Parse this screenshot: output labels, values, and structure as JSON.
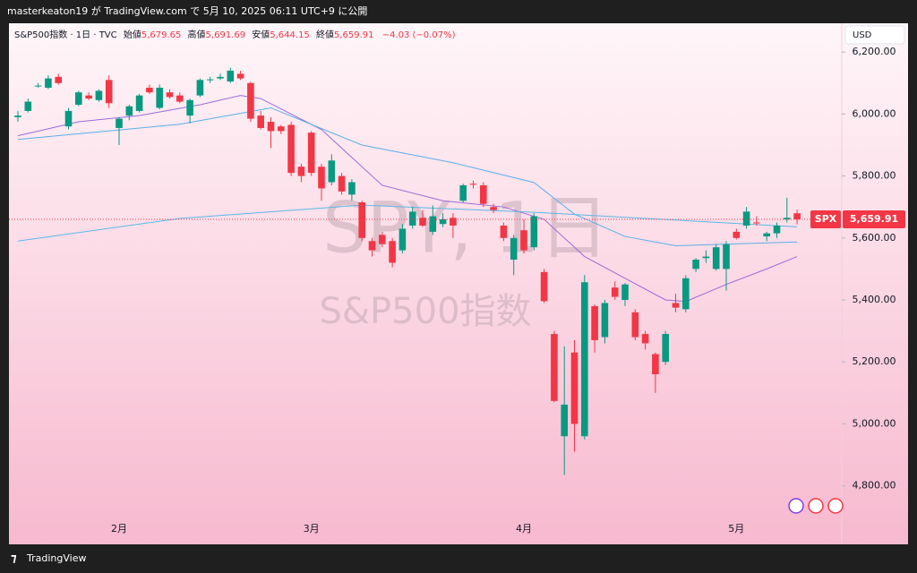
{
  "header": {
    "publish_line": "masterkeaton19 が TradingView.com で 5月 10, 2025 06:11 UTC+9 に公開",
    "legend": {
      "symbol": "S&P500指数 · 1日 · TVC",
      "open_caption": "始値",
      "open": "5,679.65",
      "high_caption": "高値",
      "high": "5,691.69",
      "low_caption": "安値",
      "low": "5,644.15",
      "close_caption": "終値",
      "close": "5,659.91",
      "change": "−4.03 (−0.07%)"
    },
    "currency": "USD"
  },
  "watermark": {
    "ticker": "SPY, 1日",
    "name": "S&P500指数"
  },
  "footer": {
    "brand": "TradingView"
  },
  "chart_data": {
    "type": "candlestick",
    "up_color": "#089981",
    "down_color": "#f23645",
    "categories": [
      null,
      null,
      null,
      null,
      null,
      null,
      null,
      null,
      null,
      null,
      "2月",
      null,
      null,
      null,
      null,
      null,
      null,
      null,
      null,
      null,
      null,
      null,
      null,
      null,
      null,
      null,
      null,
      null,
      null,
      "3月",
      null,
      null,
      null,
      null,
      null,
      null,
      null,
      null,
      null,
      null,
      null,
      null,
      null,
      null,
      null,
      null,
      null,
      null,
      null,
      null,
      "4月",
      null,
      null,
      null,
      null,
      null,
      null,
      null,
      null,
      null,
      null,
      null,
      null,
      null,
      null,
      null,
      null,
      null,
      null,
      null,
      null,
      "5月",
      null,
      null,
      null,
      null,
      null,
      null
    ],
    "open": [
      5990,
      6010,
      6090,
      6085,
      6120,
      5960,
      6030,
      6060,
      6045,
      6110,
      5955,
      5995,
      6010,
      6085,
      6020,
      6070,
      6060,
      5995,
      6060,
      6110,
      6115,
      6105,
      6130,
      6100,
      5995,
      5975,
      5960,
      5965,
      5830,
      5940,
      5830,
      5780,
      5800,
      5740,
      5715,
      5590,
      5610,
      5590,
      5560,
      5640,
      5665,
      5620,
      5645,
      5665,
      5720,
      5775,
      5770,
      5700,
      5640,
      5530,
      5625,
      5570,
      5490,
      5290,
      4960,
      5230,
      4960,
      5380,
      5280,
      5440,
      5400,
      5360,
      5290,
      5225,
      5200,
      5390,
      5370,
      5500,
      5535,
      5500,
      5500,
      5620,
      5640,
      5650,
      5605,
      5615,
      5660,
      5679.65
    ],
    "high": [
      6010,
      6050,
      6100,
      6125,
      6130,
      6020,
      6075,
      6070,
      6080,
      6125,
      5990,
      6030,
      6065,
      6095,
      6095,
      6080,
      6070,
      6050,
      6115,
      6120,
      6130,
      6150,
      6140,
      6105,
      6010,
      5990,
      5965,
      5975,
      5840,
      5945,
      5840,
      5870,
      5810,
      5790,
      5720,
      5600,
      5620,
      5600,
      5645,
      5700,
      5690,
      5705,
      5680,
      5680,
      5775,
      5785,
      5780,
      5710,
      5650,
      5610,
      5660,
      5680,
      5500,
      5300,
      5250,
      5270,
      5480,
      5385,
      5400,
      5460,
      5455,
      5370,
      5300,
      5230,
      5300,
      5420,
      5480,
      5535,
      5560,
      5580,
      5590,
      5630,
      5700,
      5670,
      5620,
      5650,
      5730,
      5691.69
    ],
    "low": [
      5975,
      6005,
      6085,
      6080,
      6095,
      5950,
      6025,
      6045,
      6040,
      6020,
      5900,
      5980,
      6005,
      6065,
      6015,
      6050,
      6035,
      5970,
      6055,
      6100,
      6110,
      6100,
      6110,
      5975,
      5950,
      5890,
      5935,
      5800,
      5780,
      5800,
      5720,
      5770,
      5740,
      5720,
      5590,
      5540,
      5570,
      5505,
      5550,
      5630,
      5635,
      5610,
      5635,
      5600,
      5715,
      5760,
      5700,
      5680,
      5590,
      5480,
      5550,
      5560,
      5390,
      5070,
      4835,
      4910,
      4950,
      5230,
      5260,
      5400,
      5380,
      5270,
      5240,
      5100,
      5190,
      5360,
      5360,
      5490,
      5520,
      5495,
      5430,
      5595,
      5630,
      5640,
      5590,
      5600,
      5650,
      5644.15
    ],
    "close": [
      5995,
      6040,
      6092,
      6115,
      6100,
      6010,
      6070,
      6050,
      6075,
      6035,
      5985,
      6025,
      6060,
      6070,
      6085,
      6055,
      6040,
      6045,
      6110,
      6112,
      6120,
      6140,
      6115,
      5985,
      5955,
      5945,
      5945,
      5810,
      5800,
      5810,
      5760,
      5850,
      5750,
      5780,
      5600,
      5560,
      5580,
      5520,
      5630,
      5685,
      5640,
      5670,
      5660,
      5640,
      5770,
      5772,
      5710,
      5690,
      5600,
      5600,
      5560,
      5670,
      5396,
      5074,
      5062,
      5000,
      5457,
      5270,
      5390,
      5410,
      5450,
      5280,
      5260,
      5160,
      5290,
      5375,
      5470,
      5530,
      5540,
      5570,
      5580,
      5600,
      5685,
      5648,
      5615,
      5640,
      5665,
      5659.91
    ],
    "overlays": [
      {
        "color": "#9c6ad6",
        "x": [
          0,
          6,
          12,
          18,
          22,
          24,
          30,
          36,
          42,
          48,
          52,
          56,
          60,
          64,
          66,
          70,
          74,
          77
        ],
        "values": [
          5930,
          5975,
          5995,
          6030,
          6060,
          6050,
          5950,
          5770,
          5720,
          5700,
          5660,
          5540,
          5470,
          5400,
          5395,
          5450,
          5500,
          5540
        ]
      },
      {
        "color": "#5aaee8",
        "x": [
          0,
          16,
          25,
          34,
          43,
          51,
          55,
          60,
          65,
          77
        ],
        "values": [
          5918,
          5967,
          6020,
          5900,
          5843,
          5779,
          5677,
          5605,
          5575,
          5587
        ]
      },
      {
        "color": "#5ab8e8",
        "x": [
          0,
          16,
          34,
          51,
          77
        ],
        "values": [
          5590,
          5663,
          5706,
          5683,
          5636
        ]
      }
    ],
    "ylim": [
      4611,
      6293
    ],
    "yticks": [
      {
        "value": 4800,
        "label": "4,800.00"
      },
      {
        "value": 5000,
        "label": "5,000.00"
      },
      {
        "value": 5200,
        "label": "5,200.00"
      },
      {
        "value": 5400,
        "label": "5,400.00"
      },
      {
        "value": 5600,
        "label": "5,600.00"
      },
      {
        "value": 5800,
        "label": "5,800.00"
      },
      {
        "value": 6000,
        "label": "6,000.00"
      },
      {
        "value": 6200,
        "label": "6,200.00"
      }
    ],
    "price_tag": {
      "symbol": "SPX",
      "value": 5659.91,
      "label": "5,659.91"
    }
  }
}
